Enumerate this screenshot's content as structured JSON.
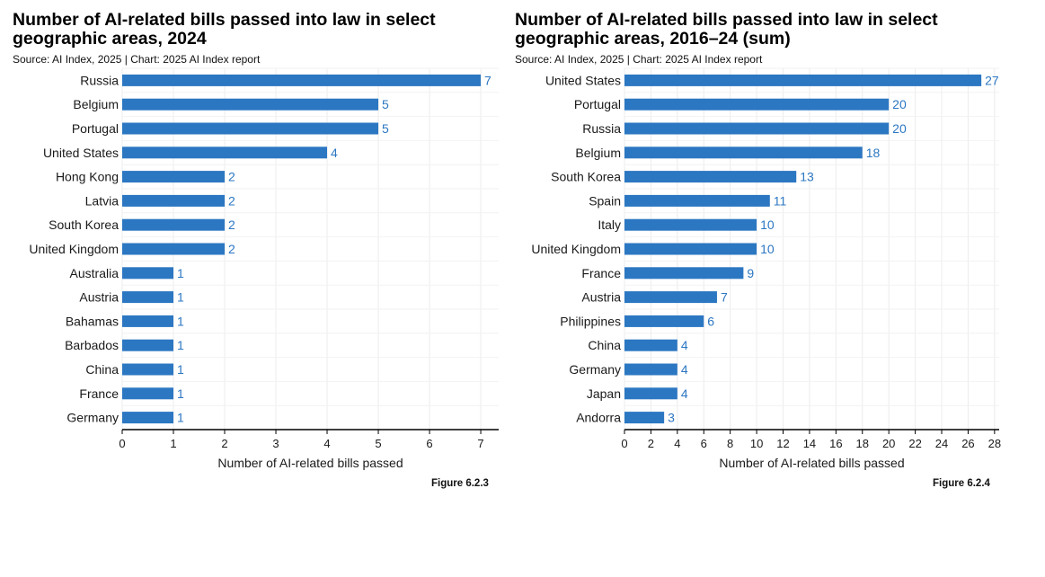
{
  "chart_data": [
    {
      "type": "bar",
      "orientation": "horizontal",
      "title": "Number of AI-related bills passed into law in select geographic areas, 2024",
      "title_lines": [
        "Number of AI-related bills passed into law in select",
        "geographic areas, 2024"
      ],
      "source": "Source: AI Index, 2025 | Chart: 2025 AI Index report",
      "categories": [
        "Russia",
        "Belgium",
        "Portugal",
        "United States",
        "Hong Kong",
        "Latvia",
        "South Korea",
        "United Kingdom",
        "Australia",
        "Austria",
        "Bahamas",
        "Barbados",
        "China",
        "France",
        "Germany"
      ],
      "values": [
        7,
        5,
        5,
        4,
        2,
        2,
        2,
        2,
        1,
        1,
        1,
        1,
        1,
        1,
        1
      ],
      "xlabel": "Number of AI-related bills passed",
      "ylabel": "",
      "xlim": [
        0,
        7.35
      ],
      "xticks": [
        0,
        1,
        2,
        3,
        4,
        5,
        6,
        7
      ],
      "grid": true,
      "bar_color": "#2c77c2",
      "figure_label": "Figure 6.2.3"
    },
    {
      "type": "bar",
      "orientation": "horizontal",
      "title": "Number of AI-related bills passed into law in select geographic areas, 2016–24 (sum)",
      "title_lines": [
        "Number of AI-related bills passed into law in select",
        "geographic areas, 2016–24 (sum)"
      ],
      "source": "Source: AI Index, 2025 | Chart: 2025 AI Index report",
      "categories": [
        "United States",
        "Portugal",
        "Russia",
        "Belgium",
        "South Korea",
        "Spain",
        "Italy",
        "United Kingdom",
        "France",
        "Austria",
        "Philippines",
        "China",
        "Germany",
        "Japan",
        "Andorra"
      ],
      "values": [
        27,
        20,
        20,
        18,
        13,
        11,
        10,
        10,
        9,
        7,
        6,
        4,
        4,
        4,
        3
      ],
      "xlabel": "Number of AI-related bills passed",
      "ylabel": "",
      "xlim": [
        0,
        28.35
      ],
      "xticks": [
        0,
        2,
        4,
        6,
        8,
        10,
        12,
        14,
        16,
        18,
        20,
        22,
        24,
        26,
        28
      ],
      "grid": true,
      "bar_color": "#2c77c2",
      "figure_label": "Figure 6.2.4"
    }
  ]
}
